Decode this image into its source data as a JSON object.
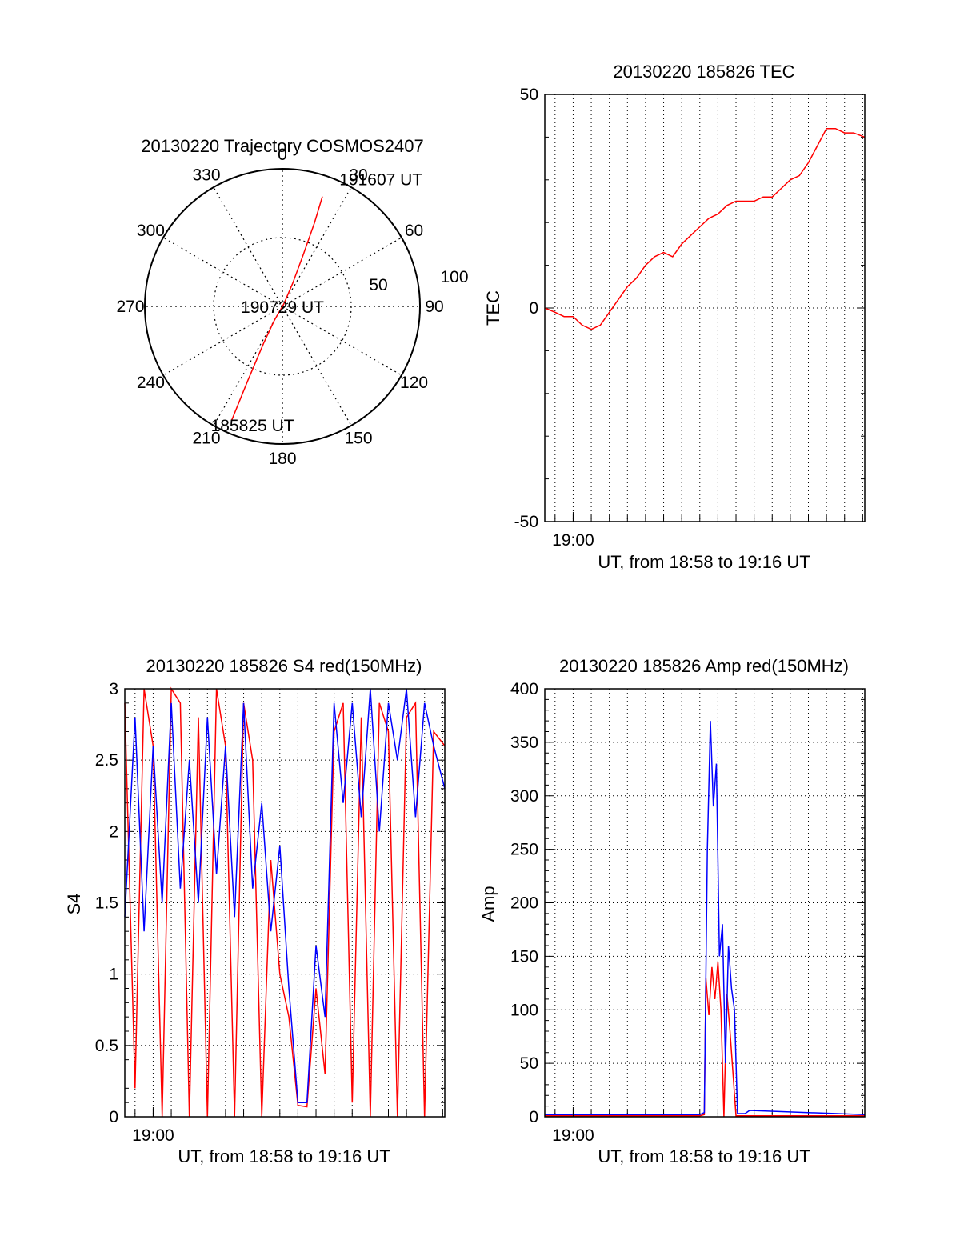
{
  "colors": {
    "red": "#ff0000",
    "blue": "#0000ff",
    "axis": "#000000",
    "grid": "#000000"
  },
  "chart_data": [
    {
      "id": "trajectory",
      "type": "polar",
      "title": "20130220 Trajectory COSMOS2407",
      "angle_labels": [
        "0",
        "30",
        "60",
        "90",
        "120",
        "150",
        "180",
        "210",
        "240",
        "270",
        "300",
        "330"
      ],
      "radius_labels": [
        "50",
        "100"
      ],
      "rlim": [
        0,
        100
      ],
      "grid": true,
      "track": {
        "color": "red",
        "points": [
          {
            "az": 204,
            "r": 91
          },
          {
            "az": 205,
            "r": 60
          },
          {
            "az": 207,
            "r": 30
          },
          {
            "az": 210,
            "r": 12
          },
          {
            "az": 30,
            "r": 2
          },
          {
            "az": 24,
            "r": 18
          },
          {
            "az": 22,
            "r": 40
          },
          {
            "az": 21,
            "r": 65
          },
          {
            "az": 20,
            "r": 85
          }
        ]
      },
      "annotations": [
        {
          "text": "191607 UT",
          "az": 22,
          "r": 95
        },
        {
          "text": "190729 UT",
          "az": 90,
          "r": 0
        },
        {
          "text": "185825 UT",
          "az": 190,
          "r": 92
        }
      ]
    },
    {
      "id": "tec",
      "type": "line",
      "title": "20130220 185826 TEC",
      "xlabel": "UT, from 18:58 to 19:16 UT",
      "ylabel": "TEC",
      "xlim": [
        "18:58:26",
        "19:16:07"
      ],
      "ylim": [
        -50,
        50
      ],
      "yticks": [
        -50,
        0,
        50
      ],
      "xticks": [
        {
          "t": "19:00",
          "label": "19:00"
        }
      ],
      "grid": true,
      "series": [
        {
          "color": "red",
          "x": [
            "18:58:26",
            "18:59:00",
            "18:59:30",
            "19:00:00",
            "19:00:30",
            "19:01:00",
            "19:01:30",
            "19:02:00",
            "19:02:30",
            "19:03:00",
            "19:03:30",
            "19:04:00",
            "19:04:30",
            "19:05:00",
            "19:05:30",
            "19:06:00",
            "19:06:30",
            "19:07:00",
            "19:07:30",
            "19:08:00",
            "19:08:30",
            "19:09:00",
            "19:09:30",
            "19:10:00",
            "19:10:30",
            "19:11:00",
            "19:11:30",
            "19:12:00",
            "19:12:30",
            "19:13:00",
            "19:13:30",
            "19:14:00",
            "19:14:30",
            "19:15:00",
            "19:15:30",
            "19:16:07"
          ],
          "values": [
            0,
            -1,
            -2,
            -2,
            -4,
            -5,
            -4,
            -1,
            2,
            5,
            7,
            10,
            12,
            13,
            12,
            15,
            17,
            19,
            21,
            22,
            24,
            25,
            25,
            25,
            26,
            26,
            28,
            30,
            31,
            34,
            38,
            42,
            42,
            41,
            41,
            40
          ]
        }
      ]
    },
    {
      "id": "s4",
      "type": "line",
      "title": "20130220 185826 S4 red(150MHz)",
      "xlabel": "UT, from 18:58 to 19:16 UT",
      "ylabel": "S4",
      "xlim": [
        "18:58:26",
        "19:16:07"
      ],
      "ylim": [
        0,
        3
      ],
      "yticks": [
        0,
        0.5,
        1,
        1.5,
        2,
        2.5,
        3
      ],
      "ytick_labels": [
        "0",
        "0.5",
        "1",
        "1.5",
        "2",
        "2.5",
        "3"
      ],
      "xticks": [
        {
          "t": "19:00",
          "label": "19:00"
        }
      ],
      "grid": true,
      "series": [
        {
          "color": "red",
          "x": [
            "18:58:26",
            "18:59:00",
            "18:59:30",
            "19:00:00",
            "19:00:30",
            "19:01:00",
            "19:01:30",
            "19:02:00",
            "19:02:30",
            "19:03:00",
            "19:03:30",
            "19:04:00",
            "19:04:30",
            "19:05:00",
            "19:05:30",
            "19:06:00",
            "19:06:30",
            "19:07:00",
            "19:07:30",
            "19:08:00",
            "19:08:30",
            "19:09:00",
            "19:09:30",
            "19:10:00",
            "19:10:30",
            "19:11:00",
            "19:11:30",
            "19:12:00",
            "19:12:30",
            "19:13:00",
            "19:13:30",
            "19:14:00",
            "19:14:30",
            "19:15:00",
            "19:15:30",
            "19:16:07"
          ],
          "values": [
            2.9,
            0.2,
            3.0,
            2.6,
            0.0,
            3.0,
            2.9,
            0.0,
            2.8,
            0.0,
            3.0,
            2.6,
            0.0,
            2.9,
            2.5,
            0.0,
            1.8,
            1.0,
            0.7,
            0.08,
            0.07,
            0.9,
            0.3,
            2.7,
            2.9,
            0.1,
            2.8,
            0.0,
            2.9,
            2.7,
            0.0,
            2.8,
            2.9,
            0.0,
            2.7,
            2.6
          ]
        },
        {
          "color": "blue",
          "x": [
            "18:58:26",
            "18:59:00",
            "18:59:30",
            "19:00:00",
            "19:00:30",
            "19:01:00",
            "19:01:30",
            "19:02:00",
            "19:02:30",
            "19:03:00",
            "19:03:30",
            "19:04:00",
            "19:04:30",
            "19:05:00",
            "19:05:30",
            "19:06:00",
            "19:06:30",
            "19:07:00",
            "19:07:30",
            "19:08:00",
            "19:08:30",
            "19:09:00",
            "19:09:30",
            "19:10:00",
            "19:10:30",
            "19:11:00",
            "19:11:30",
            "19:12:00",
            "19:12:30",
            "19:13:00",
            "19:13:30",
            "19:14:00",
            "19:14:30",
            "19:15:00",
            "19:15:30",
            "19:16:07"
          ],
          "values": [
            1.4,
            2.8,
            1.3,
            2.6,
            1.5,
            2.9,
            1.6,
            2.5,
            1.5,
            2.8,
            1.7,
            2.6,
            1.4,
            2.9,
            1.6,
            2.2,
            1.3,
            1.9,
            0.9,
            0.1,
            0.1,
            1.2,
            0.7,
            2.9,
            2.2,
            2.9,
            2.1,
            3.0,
            2.0,
            2.9,
            2.5,
            3.0,
            2.1,
            2.9,
            2.6,
            2.3
          ]
        }
      ]
    },
    {
      "id": "amp",
      "type": "line",
      "title": "20130220 185826 Amp red(150MHz)",
      "xlabel": "UT, from 18:58 to 19:16 UT",
      "ylabel": "Amp",
      "xlim": [
        "18:58:26",
        "19:16:07"
      ],
      "ylim": [
        0,
        400
      ],
      "yticks": [
        0,
        50,
        100,
        150,
        200,
        250,
        300,
        350,
        400
      ],
      "xticks": [
        {
          "t": "19:00",
          "label": "19:00"
        }
      ],
      "grid": true,
      "series": [
        {
          "color": "red",
          "x": [
            "18:58:26",
            "19:07:00",
            "19:07:15",
            "19:07:20",
            "19:07:30",
            "19:07:40",
            "19:07:50",
            "19:08:00",
            "19:08:10",
            "19:08:20",
            "19:08:30",
            "19:08:40",
            "19:09:00",
            "19:16:07"
          ],
          "values": [
            1,
            1,
            2,
            130,
            95,
            140,
            110,
            145,
            100,
            0,
            115,
            80,
            1,
            1
          ]
        },
        {
          "color": "blue",
          "x": [
            "18:58:26",
            "19:07:00",
            "19:07:15",
            "19:07:25",
            "19:07:35",
            "19:07:45",
            "19:07:55",
            "19:08:05",
            "19:08:15",
            "19:08:25",
            "19:08:35",
            "19:08:45",
            "19:08:55",
            "19:09:05",
            "19:09:30",
            "19:09:45",
            "19:16:07"
          ],
          "values": [
            2,
            2,
            4,
            250,
            370,
            290,
            330,
            150,
            180,
            50,
            160,
            120,
            100,
            3,
            3,
            6,
            2
          ]
        }
      ]
    }
  ]
}
